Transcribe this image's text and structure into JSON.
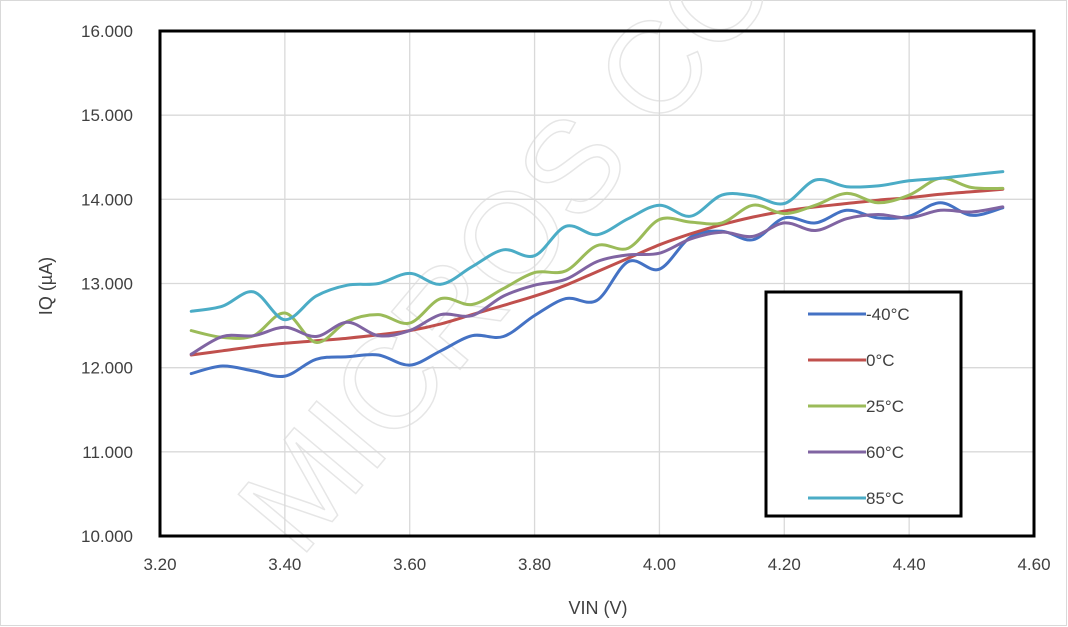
{
  "chart_data": {
    "type": "line",
    "title": "",
    "xlabel": "VIN (V)",
    "ylabel": "IQ (µA)",
    "xlim": [
      3.2,
      4.6
    ],
    "ylim": [
      10.0,
      16.0
    ],
    "x_ticks": [
      "3.20",
      "3.40",
      "3.60",
      "3.80",
      "4.00",
      "4.20",
      "4.40",
      "4.60"
    ],
    "y_ticks": [
      "10.000",
      "11.000",
      "12.000",
      "13.000",
      "14.000",
      "15.000",
      "16.000"
    ],
    "grid": true,
    "legend_position": "right",
    "watermark": "MICROS CONFIDENTIAL",
    "x": [
      3.25,
      3.3,
      3.35,
      3.4,
      3.45,
      3.5,
      3.55,
      3.6,
      3.65,
      3.7,
      3.75,
      3.8,
      3.85,
      3.9,
      3.95,
      4.0,
      4.05,
      4.1,
      4.15,
      4.2,
      4.25,
      4.3,
      4.35,
      4.4,
      4.45,
      4.5,
      4.55
    ],
    "series": [
      {
        "name": "-40°C",
        "color": "#4472C4",
        "values": [
          11.93,
          12.02,
          11.96,
          11.9,
          12.1,
          12.13,
          12.15,
          12.03,
          12.2,
          12.38,
          12.37,
          12.62,
          12.82,
          12.8,
          13.26,
          13.17,
          13.55,
          13.62,
          13.52,
          13.78,
          13.72,
          13.87,
          13.78,
          13.8,
          13.96,
          13.81,
          13.9
        ]
      },
      {
        "name": "0°C",
        "color": "#C0504D",
        "values": [
          12.15,
          12.2,
          12.25,
          12.29,
          12.32,
          12.35,
          12.39,
          12.44,
          12.52,
          12.63,
          12.74,
          12.85,
          12.98,
          13.14,
          13.3,
          13.46,
          13.59,
          13.7,
          13.79,
          13.86,
          13.91,
          13.95,
          13.99,
          14.02,
          14.06,
          14.09,
          14.12
        ]
      },
      {
        "name": "25°C",
        "color": "#9BBB59",
        "values": [
          12.44,
          12.36,
          12.38,
          12.65,
          12.3,
          12.55,
          12.63,
          12.53,
          12.82,
          12.75,
          12.94,
          13.13,
          13.15,
          13.45,
          13.42,
          13.76,
          13.73,
          13.72,
          13.93,
          13.83,
          13.93,
          14.07,
          13.96,
          14.05,
          14.25,
          14.14,
          14.13
        ]
      },
      {
        "name": "60°C",
        "color": "#8064A2",
        "values": [
          12.16,
          12.37,
          12.38,
          12.48,
          12.37,
          12.54,
          12.38,
          12.44,
          12.63,
          12.62,
          12.85,
          12.98,
          13.05,
          13.26,
          13.34,
          13.36,
          13.53,
          13.61,
          13.56,
          13.72,
          13.63,
          13.77,
          13.82,
          13.78,
          13.87,
          13.85,
          13.91
        ]
      },
      {
        "name": "85°C",
        "color": "#4BACC6",
        "values": [
          12.67,
          12.73,
          12.9,
          12.57,
          12.85,
          12.98,
          13.0,
          13.12,
          12.99,
          13.2,
          13.4,
          13.33,
          13.68,
          13.58,
          13.77,
          13.93,
          13.8,
          14.05,
          14.04,
          13.95,
          14.23,
          14.15,
          14.16,
          14.22,
          14.25,
          14.29,
          14.33
        ]
      }
    ]
  }
}
